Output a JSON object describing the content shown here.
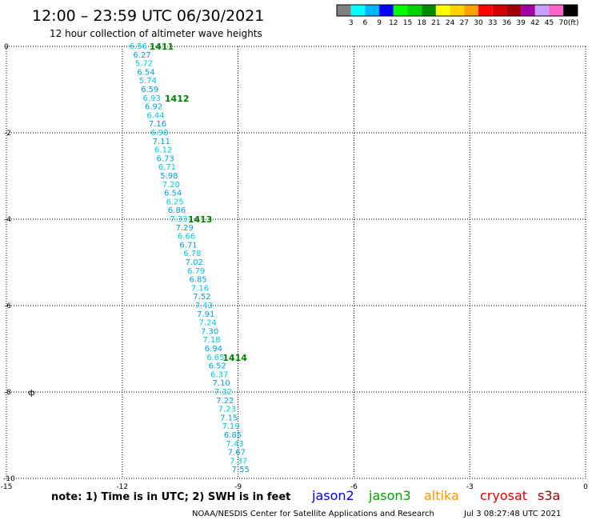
{
  "chart_data": {
    "type": "scatter",
    "title": "12:00 – 23:59 UTC 06/30/2021",
    "subtitle": "12 hour collection of altimeter wave heights",
    "xlim": [
      -15,
      0
    ],
    "ylim": [
      -10,
      0
    ],
    "x_ticks": [
      "-15",
      "-12",
      "-9",
      "-6",
      "-3",
      "0"
    ],
    "y_ticks": [
      "0",
      "-2",
      "-4",
      "-6",
      "-8",
      "-10"
    ],
    "grid": true,
    "colorbar": {
      "labels": [
        "3",
        "6",
        "9",
        "12",
        "15",
        "18",
        "21",
        "24",
        "27",
        "30",
        "33",
        "36",
        "39",
        "42",
        "45",
        "70"
      ],
      "unit": "(ft)",
      "colors": [
        "#808080",
        "#00ffff",
        "#00b4ff",
        "#0000ff",
        "#00ff00",
        "#00d200",
        "#008c00",
        "#ffff00",
        "#ffd200",
        "#ffa000",
        "#ff0000",
        "#d20000",
        "#a00000",
        "#a000a0",
        "#c8a0ff",
        "#ff64c8",
        "#000000"
      ]
    },
    "point_colors": [
      "#00c8e6",
      "#00a0dc"
    ],
    "points": [
      {
        "x": -12.0,
        "y": 0.0,
        "label": "6.56"
      },
      {
        "x": -11.9,
        "y": -0.2,
        "label": "6.27"
      },
      {
        "x": -11.85,
        "y": -0.4,
        "label": "5.72"
      },
      {
        "x": -11.8,
        "y": -0.6,
        "label": "6.54"
      },
      {
        "x": -11.75,
        "y": -0.8,
        "label": "5.74"
      },
      {
        "x": -11.7,
        "y": -1.0,
        "label": "6.59"
      },
      {
        "x": -11.65,
        "y": -1.2,
        "label": "6.93"
      },
      {
        "x": -11.6,
        "y": -1.4,
        "label": "6.92"
      },
      {
        "x": -11.55,
        "y": -1.6,
        "label": "6.44"
      },
      {
        "x": -11.5,
        "y": -1.8,
        "label": "7.16"
      },
      {
        "x": -11.45,
        "y": -2.0,
        "label": "6.98"
      },
      {
        "x": -11.4,
        "y": -2.2,
        "label": "7.11"
      },
      {
        "x": -11.35,
        "y": -2.4,
        "label": "6.12"
      },
      {
        "x": -11.3,
        "y": -2.6,
        "label": "6.73"
      },
      {
        "x": -11.25,
        "y": -2.8,
        "label": "6.71"
      },
      {
        "x": -11.2,
        "y": -3.0,
        "label": "5.98"
      },
      {
        "x": -11.15,
        "y": -3.2,
        "label": "7.20"
      },
      {
        "x": -11.1,
        "y": -3.4,
        "label": "6.54"
      },
      {
        "x": -11.05,
        "y": -3.6,
        "label": "6.25"
      },
      {
        "x": -11.0,
        "y": -3.8,
        "label": "6.86"
      },
      {
        "x": -10.95,
        "y": -4.0,
        "label": "7.33"
      },
      {
        "x": -10.8,
        "y": -4.2,
        "label": "7.29"
      },
      {
        "x": -10.75,
        "y": -4.4,
        "label": "6.66"
      },
      {
        "x": -10.7,
        "y": -4.6,
        "label": "6.71"
      },
      {
        "x": -10.6,
        "y": -4.8,
        "label": "6.78"
      },
      {
        "x": -10.55,
        "y": -5.0,
        "label": "7.02"
      },
      {
        "x": -10.5,
        "y": -5.2,
        "label": "6.79"
      },
      {
        "x": -10.45,
        "y": -5.4,
        "label": "6.85"
      },
      {
        "x": -10.4,
        "y": -5.6,
        "label": "7.16"
      },
      {
        "x": -10.35,
        "y": -5.8,
        "label": "7.52"
      },
      {
        "x": -10.3,
        "y": -6.0,
        "label": "7.43"
      },
      {
        "x": -10.25,
        "y": -6.2,
        "label": "7.91"
      },
      {
        "x": -10.2,
        "y": -6.4,
        "label": "7.24"
      },
      {
        "x": -10.15,
        "y": -6.6,
        "label": "7.30"
      },
      {
        "x": -10.1,
        "y": -6.8,
        "label": "7.18"
      },
      {
        "x": -10.05,
        "y": -7.0,
        "label": "6.94"
      },
      {
        "x": -10.0,
        "y": -7.2,
        "label": "6.65"
      },
      {
        "x": -9.95,
        "y": -7.4,
        "label": "6.52"
      },
      {
        "x": -9.9,
        "y": -7.6,
        "label": "6.37"
      },
      {
        "x": -9.85,
        "y": -7.8,
        "label": "7.10"
      },
      {
        "x": -9.8,
        "y": -8.0,
        "label": "7.32"
      },
      {
        "x": -9.75,
        "y": -8.2,
        "label": "7.22"
      },
      {
        "x": -9.7,
        "y": -8.4,
        "label": "7.23"
      },
      {
        "x": -9.65,
        "y": -8.6,
        "label": "7.15"
      },
      {
        "x": -9.6,
        "y": -8.8,
        "label": "7.19"
      },
      {
        "x": -9.55,
        "y": -9.0,
        "label": "6.85"
      },
      {
        "x": -9.5,
        "y": -9.2,
        "label": "7.43"
      },
      {
        "x": -9.45,
        "y": -9.4,
        "label": "7.67"
      },
      {
        "x": -9.4,
        "y": -9.6,
        "label": "7.37"
      },
      {
        "x": -9.35,
        "y": -9.8,
        "label": "7.55"
      }
    ],
    "annotations": [
      {
        "x": -11.3,
        "y": 0.0,
        "text": "1411",
        "color": "#008000"
      },
      {
        "x": -10.9,
        "y": -1.2,
        "text": "1412",
        "color": "#008000"
      },
      {
        "x": -10.3,
        "y": -4.0,
        "text": "1413",
        "color": "#008000"
      },
      {
        "x": -9.4,
        "y": -7.2,
        "text": "1414",
        "color": "#008000"
      },
      {
        "x": -15.0,
        "y": -8.0,
        "text": "ф",
        "color": "#000000"
      }
    ]
  },
  "footer": {
    "note": "note: 1) Time is in UTC; 2) SWH is in feet",
    "satellites": [
      {
        "name": "jason2",
        "color": "#0000dc"
      },
      {
        "name": "jason3",
        "color": "#00a000"
      },
      {
        "name": "altika",
        "color": "#ff9600"
      },
      {
        "name": "cryosat",
        "color": "#dc0000"
      },
      {
        "name": "s3a",
        "color": "#960000"
      }
    ],
    "credit": "NOAA/NESDIS Center for Satellite Applications and Research",
    "timestamp": "Jul  3 08:27:48 UTC 2021"
  }
}
